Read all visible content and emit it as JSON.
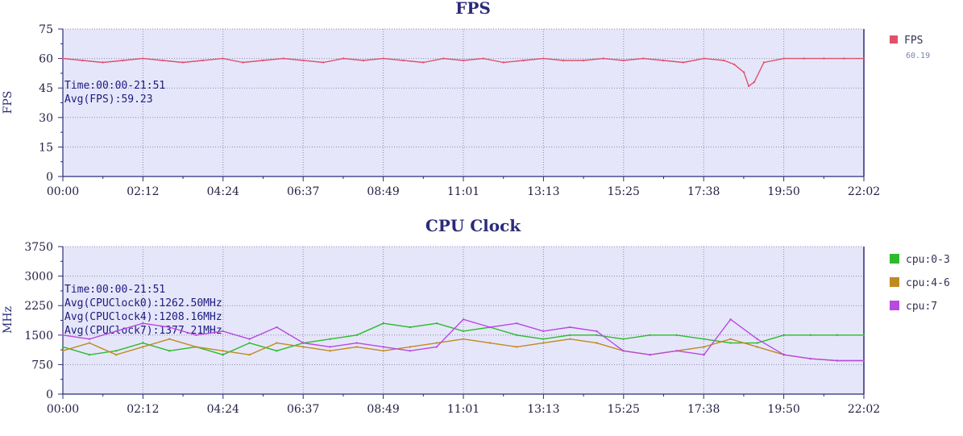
{
  "chart_data": [
    {
      "type": "line",
      "title": "FPS",
      "ylabel": "FPS",
      "xlabel": "",
      "ylim": [
        0,
        75
      ],
      "yticks": [
        "0",
        "15",
        "30",
        "45",
        "60",
        "75"
      ],
      "x_tick_labels": [
        "00:00",
        "02:12",
        "04:24",
        "06:37",
        "08:49",
        "11:01",
        "13:13",
        "15:25",
        "17:38",
        "19:50",
        "22:02"
      ],
      "grid": true,
      "legend_position": "right",
      "annotations": [
        "Time:00:00-21:51",
        "Avg(FPS):59.23"
      ],
      "series": [
        {
          "name": "FPS",
          "legend_value": "60.19",
          "color": "#e0506a",
          "x": [
            "00:00",
            "00:33",
            "01:06",
            "01:39",
            "02:12",
            "02:45",
            "03:18",
            "03:51",
            "04:24",
            "04:57",
            "05:30",
            "06:04",
            "06:37",
            "07:10",
            "07:43",
            "08:16",
            "08:49",
            "09:22",
            "09:55",
            "10:28",
            "11:01",
            "11:34",
            "12:07",
            "12:40",
            "13:13",
            "13:46",
            "14:19",
            "14:52",
            "15:25",
            "15:58",
            "16:31",
            "17:04",
            "17:38",
            "18:11",
            "18:28",
            "18:44",
            "18:52",
            "19:01",
            "19:17",
            "19:50",
            "20:23",
            "20:56",
            "21:29",
            "22:02"
          ],
          "values": [
            60,
            59,
            58,
            59,
            60,
            59,
            58,
            59,
            60,
            58,
            59,
            60,
            59,
            58,
            60,
            59,
            60,
            59,
            58,
            60,
            59,
            60,
            58,
            59,
            60,
            59,
            59,
            60,
            59,
            60,
            59,
            58,
            60,
            59,
            57,
            53,
            46,
            48,
            58,
            60,
            60,
            60,
            60,
            60
          ]
        }
      ]
    },
    {
      "type": "line",
      "title": "CPU Clock",
      "ylabel": "MHz",
      "xlabel": "",
      "ylim": [
        0,
        3750
      ],
      "yticks": [
        "0",
        "750",
        "1500",
        "2250",
        "3000",
        "3750"
      ],
      "x_tick_labels": [
        "00:00",
        "02:12",
        "04:24",
        "06:37",
        "08:49",
        "11:01",
        "13:13",
        "15:25",
        "17:38",
        "19:50",
        "22:02"
      ],
      "grid": true,
      "legend_position": "right",
      "annotations": [
        "Time:00:00-21:51",
        "Avg(CPUClock0):1262.50MHz",
        "Avg(CPUClock4):1208.16MHz",
        "Avg(CPUClock7):1377.21MHz"
      ],
      "series": [
        {
          "name": "cpu:0-3",
          "color": "#2dbb2d",
          "x": [
            "00:00",
            "00:44",
            "01:28",
            "02:12",
            "02:56",
            "03:40",
            "04:24",
            "05:08",
            "05:53",
            "06:37",
            "07:21",
            "08:05",
            "08:49",
            "09:33",
            "10:17",
            "11:01",
            "11:45",
            "12:29",
            "13:13",
            "13:57",
            "14:41",
            "15:25",
            "16:09",
            "16:53",
            "17:38",
            "18:22",
            "19:06",
            "19:50",
            "20:34",
            "21:18",
            "22:02"
          ],
          "values": [
            1200,
            1000,
            1100,
            1300,
            1100,
            1200,
            1000,
            1300,
            1100,
            1300,
            1400,
            1500,
            1800,
            1700,
            1800,
            1600,
            1700,
            1500,
            1400,
            1500,
            1500,
            1400,
            1500,
            1500,
            1400,
            1300,
            1300,
            1500,
            1500,
            1500,
            1500
          ]
        },
        {
          "name": "cpu:4-6",
          "color": "#c08a20",
          "x": [
            "00:00",
            "00:44",
            "01:28",
            "02:12",
            "02:56",
            "03:40",
            "04:24",
            "05:08",
            "05:53",
            "06:37",
            "07:21",
            "08:05",
            "08:49",
            "09:33",
            "10:17",
            "11:01",
            "11:45",
            "12:29",
            "13:13",
            "13:57",
            "14:41",
            "15:25",
            "16:09",
            "16:53",
            "17:38",
            "18:22",
            "19:06",
            "19:50",
            "20:34",
            "21:18",
            "22:02"
          ],
          "values": [
            1100,
            1300,
            1000,
            1200,
            1400,
            1200,
            1100,
            1000,
            1300,
            1200,
            1100,
            1200,
            1100,
            1200,
            1300,
            1400,
            1300,
            1200,
            1300,
            1400,
            1300,
            1100,
            1000,
            1100,
            1200,
            1400,
            1200,
            1000,
            900,
            850,
            850
          ]
        },
        {
          "name": "cpu:7",
          "color": "#b84ae0",
          "x": [
            "00:00",
            "00:44",
            "01:28",
            "02:12",
            "02:56",
            "03:40",
            "04:24",
            "05:08",
            "05:53",
            "06:37",
            "07:21",
            "08:05",
            "08:49",
            "09:33",
            "10:17",
            "11:01",
            "11:45",
            "12:29",
            "13:13",
            "13:57",
            "14:41",
            "15:25",
            "16:09",
            "16:53",
            "17:38",
            "18:22",
            "19:06",
            "19:50",
            "20:34",
            "21:18",
            "22:02"
          ],
          "values": [
            1500,
            1400,
            1600,
            1800,
            1700,
            1500,
            1600,
            1400,
            1700,
            1300,
            1200,
            1300,
            1200,
            1100,
            1200,
            1900,
            1700,
            1800,
            1600,
            1700,
            1600,
            1100,
            1000,
            1100,
            1000,
            1900,
            1400,
            1000,
            900,
            850,
            850
          ]
        }
      ]
    }
  ]
}
